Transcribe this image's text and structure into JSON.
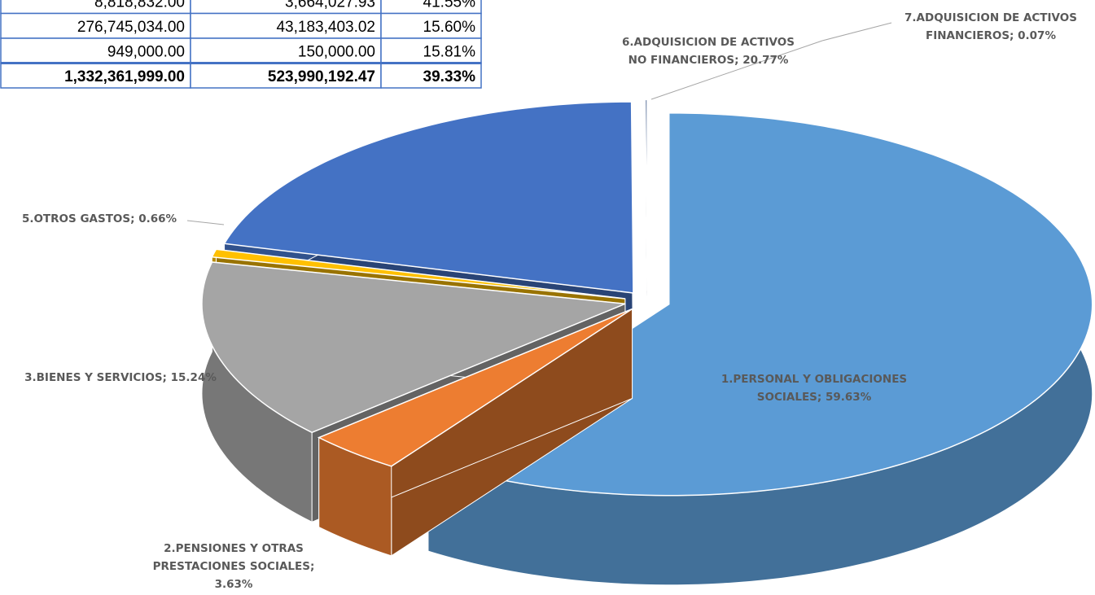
{
  "table": {
    "rows": [
      [
        "8,818,832.00",
        "3,664,027.93",
        "41.55%"
      ],
      [
        "276,745,034.00",
        "43,183,403.02",
        "15.60%"
      ],
      [
        "949,000.00",
        "150,000.00",
        "15.81%"
      ],
      [
        "1,332,361,999.00",
        "523,990,192.47",
        "39.33%"
      ]
    ]
  },
  "chart_data": {
    "type": "pie",
    "categories": [
      "1.PERSONAL Y OBLIGACIONES SOCIALES",
      "2.PENSIONES Y OTRAS PRESTACIONES SOCIALES",
      "3.BIENES Y SERVICIOS",
      "5.OTROS GASTOS",
      "6.ADQUISICION DE ACTIVOS NO FINANCIEROS",
      "7.ADQUISICION DE ACTIVOS FINANCIEROS"
    ],
    "values": [
      59.63,
      3.63,
      15.24,
      0.66,
      20.77,
      0.07
    ],
    "value_labels": [
      "59.63%",
      "3.63%",
      "15.24%",
      "0.66%",
      "20.77%",
      "0.07%"
    ],
    "colors": [
      "#5b9bd5",
      "#ed7d31",
      "#a5a5a5",
      "#ffc000",
      "#4472c4",
      "#264478"
    ]
  }
}
